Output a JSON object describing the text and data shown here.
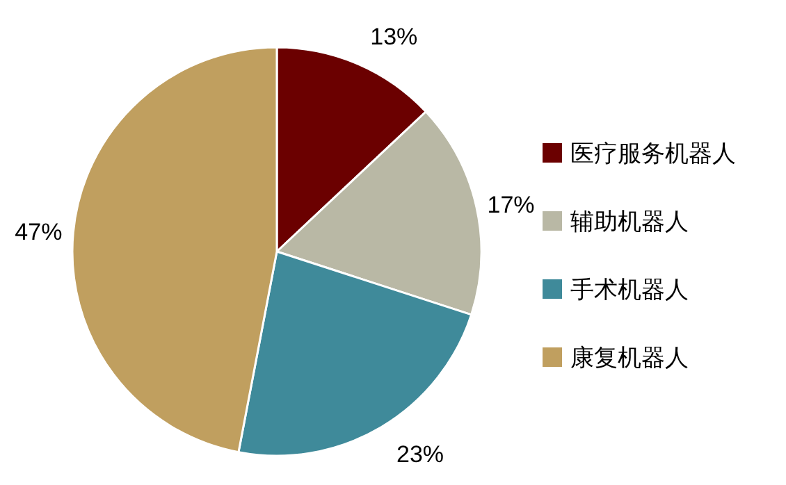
{
  "chart_data": {
    "type": "pie",
    "categories": [
      "医疗服务机器人",
      "辅助机器人",
      "手术机器人",
      "康复机器人"
    ],
    "values": [
      13,
      17,
      23,
      47
    ],
    "value_labels": [
      "13%",
      "17%",
      "23%",
      "47%"
    ],
    "colors": [
      "#6b0000",
      "#b9b8a5",
      "#3f8a9a",
      "#c09f5f"
    ],
    "legend": "right"
  }
}
